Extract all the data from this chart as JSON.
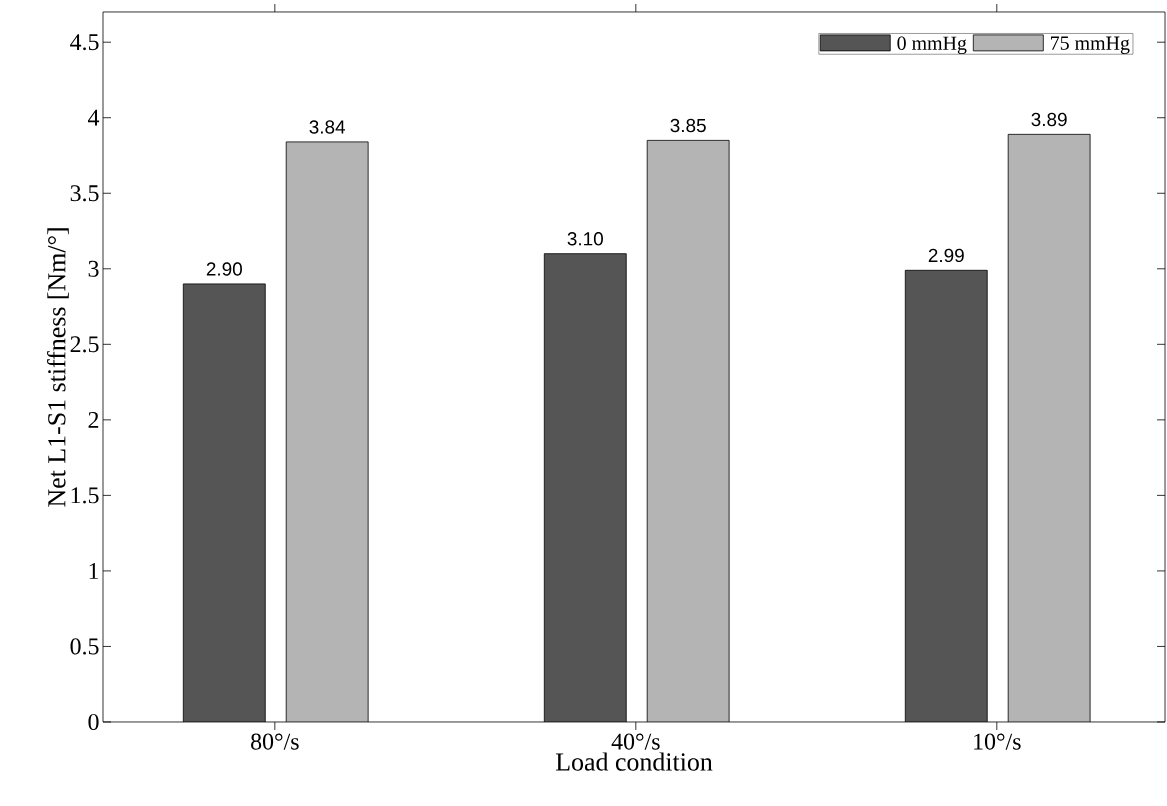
{
  "chart_data": {
    "type": "bar",
    "xlabel": "Load condition",
    "ylabel": "Net L1-S1 stiffness [Nm/°]",
    "categories": [
      "80°/s",
      "40°/s",
      "10°/s"
    ],
    "series": [
      {
        "name": "0 mmHg",
        "color": "#555555",
        "values": [
          2.9,
          3.1,
          2.99
        ],
        "value_labels": [
          "2.90",
          "3.10",
          "2.99"
        ]
      },
      {
        "name": "75 mmHg",
        "color": "#b4b4b4",
        "values": [
          3.84,
          3.85,
          3.89
        ],
        "value_labels": [
          "3.84",
          "3.85",
          "3.89"
        ]
      }
    ],
    "ylim": [
      0,
      4.7
    ],
    "yticks": [
      0,
      0.5,
      1,
      1.5,
      2,
      2.5,
      3,
      3.5,
      4,
      4.5
    ],
    "grid": false,
    "legend": "top right"
  }
}
